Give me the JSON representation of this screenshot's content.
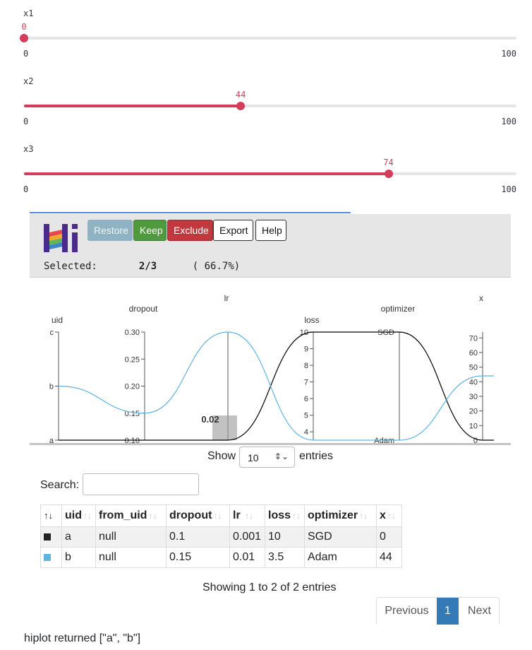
{
  "sliders": [
    {
      "label": "x1",
      "value": 0,
      "value_text": "0",
      "min": 0,
      "max": 100,
      "min_text": "0",
      "max_text": "100"
    },
    {
      "label": "x2",
      "value": 44,
      "value_text": "44",
      "min": 0,
      "max": 100,
      "min_text": "0",
      "max_text": "100"
    },
    {
      "label": "x3",
      "value": 74,
      "value_text": "74",
      "min": 0,
      "max": 100,
      "min_text": "0",
      "max_text": "100"
    }
  ],
  "hiplot": {
    "buttons": {
      "restore": "Restore",
      "keep": "Keep",
      "exclude": "Exclude",
      "export": "Export",
      "help": "Help"
    },
    "selected": {
      "label": "Selected:",
      "count": "2/3",
      "percent": "( 66.7%)"
    },
    "logo_colors": [
      "#4a2a8a",
      "#e8484b",
      "#f2a92c",
      "#5fb65a",
      "#3a86c8"
    ],
    "brush_label": "0.02"
  },
  "chart_data": {
    "type": "parallel-coordinates",
    "axes": [
      {
        "name": "uid",
        "scale": "categorical",
        "ticks": [
          "a",
          "b",
          "c"
        ]
      },
      {
        "name": "dropout",
        "scale": "linear",
        "range": [
          0.1,
          0.3
        ],
        "ticks": [
          "0.10",
          "0.15",
          "0.20",
          "0.25",
          "0.30"
        ]
      },
      {
        "name": "lr",
        "scale": "log",
        "range": [
          0.001,
          0.01
        ],
        "ticks": []
      },
      {
        "name": "loss",
        "scale": "linear",
        "range": [
          3.5,
          10
        ],
        "ticks": [
          "4",
          "5",
          "6",
          "7",
          "8",
          "9",
          "10"
        ]
      },
      {
        "name": "optimizer",
        "scale": "categorical",
        "ticks": [
          "Adam",
          "SGD"
        ]
      },
      {
        "name": "x",
        "scale": "linear",
        "range": [
          0,
          74
        ],
        "ticks": [
          "0",
          "10",
          "20",
          "30",
          "40",
          "50",
          "60",
          "70"
        ]
      }
    ],
    "series": [
      {
        "name": "a",
        "color": "#000000",
        "values": {
          "uid": "a",
          "dropout": 0.1,
          "lr": 0.001,
          "loss": 10,
          "optimizer": "SGD",
          "x": 0
        }
      },
      {
        "name": "b",
        "color": "#5fb4e0",
        "values": {
          "uid": "b",
          "dropout": 0.15,
          "lr": 0.01,
          "loss": 3.5,
          "optimizer": "Adam",
          "x": 44
        }
      }
    ]
  },
  "table": {
    "show_label": "Show",
    "entries_label": "entries",
    "page_size": "10",
    "search_label": "Search:",
    "sort_marker": "↑↓",
    "columns": [
      "",
      "uid",
      "from_uid",
      "dropout",
      "lr",
      "loss",
      "optimizer",
      "x"
    ],
    "rows": [
      {
        "color": "#222222",
        "uid": "a",
        "from_uid": "null",
        "dropout": "0.1",
        "lr": "0.001",
        "loss": "10",
        "optimizer": "SGD",
        "x": "0"
      },
      {
        "color": "#5fb4e0",
        "uid": "b",
        "from_uid": "null",
        "dropout": "0.15",
        "lr": "0.01",
        "loss": "3.5",
        "optimizer": "Adam",
        "x": "44"
      }
    ],
    "info": "Showing 1 to 2 of 2 entries",
    "pagination": {
      "previous": "Previous",
      "current": "1",
      "next": "Next"
    }
  },
  "footer": "hiplot returned [\"a\", \"b\"]"
}
